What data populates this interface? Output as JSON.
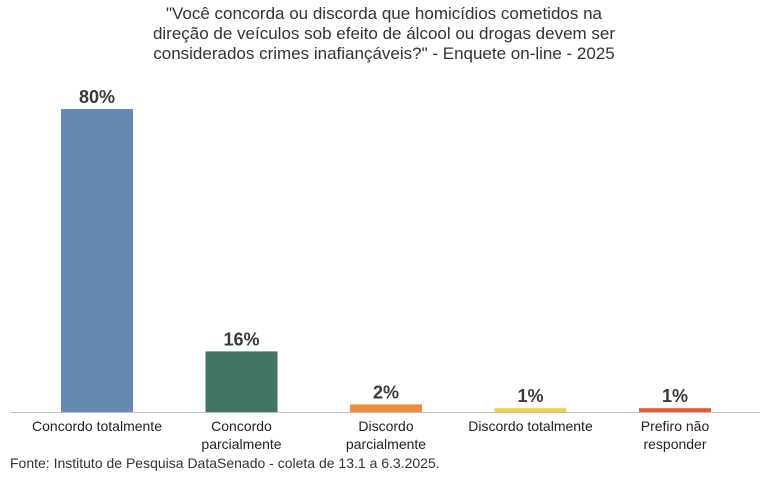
{
  "title_lines": [
    "\"Você concorda ou discorda que homicídios cometidos na",
    "direção de veículos sob efeito de álcool ou drogas devem ser",
    "considerados crimes inafiançáveis?\" - Enquete on-line - 2025"
  ],
  "source": "Fonte: Instituto de Pesquisa DataSenado - coleta de 13.1 a 6.3.2025.",
  "chart_data": {
    "type": "bar",
    "title": "\"Você concorda ou discorda que homicídios cometidos na direção de veículos sob efeito de álcool ou drogas devem ser considerados crimes inafiançáveis?\" - Enquete on-line - 2025",
    "xlabel": "",
    "ylabel": "",
    "unit": "%",
    "ylim": [
      0,
      80
    ],
    "grid": false,
    "categories": [
      [
        "Concordo totalmente"
      ],
      [
        "Concordo",
        "parcialmente"
      ],
      [
        "Discordo",
        "parcialmente"
      ],
      [
        "Discordo totalmente"
      ],
      [
        "Prefiro não",
        "responder"
      ]
    ],
    "values": [
      80,
      16,
      2,
      1,
      1
    ],
    "data_labels": [
      "80%",
      "16%",
      "2%",
      "1%",
      "1%"
    ],
    "colors": [
      "#6689b3",
      "#417462",
      "#f08a3c",
      "#efd24a",
      "#e8562a"
    ]
  }
}
